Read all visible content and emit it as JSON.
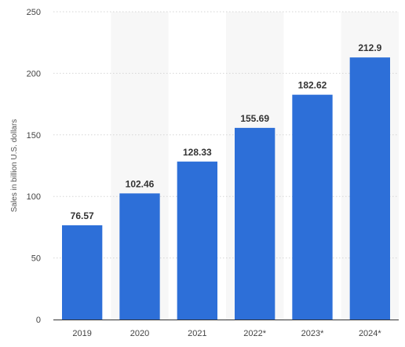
{
  "chart_data": {
    "type": "bar",
    "categories": [
      "2019",
      "2020",
      "2021",
      "2022*",
      "2023*",
      "2024*"
    ],
    "values": [
      76.57,
      102.46,
      128.33,
      155.69,
      182.62,
      212.9
    ],
    "data_labels": [
      "76.57",
      "102.46",
      "128.33",
      "155.69",
      "182.62",
      "212.9"
    ],
    "title": "",
    "xlabel": "",
    "ylabel": "Sales in billion U.S. dollars",
    "ylim": [
      0,
      250
    ],
    "yticks": [
      0,
      50,
      100,
      150,
      200,
      250
    ],
    "ytick_labels": [
      "0",
      "50",
      "100",
      "150",
      "200",
      "250"
    ],
    "grid": true,
    "legend": "none",
    "colors": {
      "bar": "#2d6fd8",
      "grid": "#d6d6d6",
      "band": "#f7f7f7",
      "axis": "#333333"
    }
  }
}
